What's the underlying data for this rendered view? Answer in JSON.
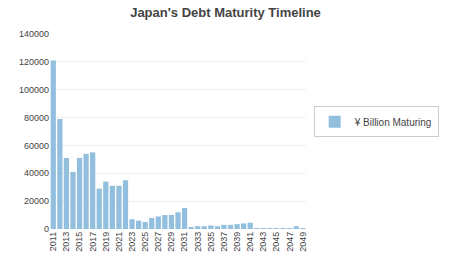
{
  "chart_data": {
    "type": "bar",
    "title": "Japan's Debt Maturity Timeline",
    "categories": [
      "2011",
      null,
      "2013",
      null,
      "2015",
      null,
      "2017",
      null,
      "2019",
      null,
      "2021",
      null,
      "2023",
      null,
      "2025",
      null,
      "2027",
      null,
      "2029",
      null,
      "2031",
      null,
      "2033",
      null,
      "2035",
      null,
      "2037",
      null,
      "2039",
      null,
      "2041",
      null,
      "2043",
      null,
      "2045",
      null,
      "2047",
      null,
      "2049"
    ],
    "series": [
      {
        "name": "¥ Billion Maturing",
        "color": "#92BFDE",
        "values": [
          121000,
          79000,
          51000,
          41000,
          51000,
          54000,
          55000,
          29000,
          34000,
          31000,
          31000,
          35000,
          7000,
          6000,
          5000,
          8000,
          9000,
          10000,
          10000,
          12000,
          15000,
          1000,
          2000,
          2000,
          2500,
          2000,
          3000,
          3000,
          3500,
          4000,
          4500,
          500,
          500,
          500,
          500,
          500,
          500,
          2000,
          500
        ]
      }
    ],
    "ylim": [
      0,
      140000
    ],
    "yticks": [
      0,
      20000,
      40000,
      60000,
      80000,
      100000,
      120000,
      140000
    ],
    "grid": true,
    "legend": "right"
  }
}
